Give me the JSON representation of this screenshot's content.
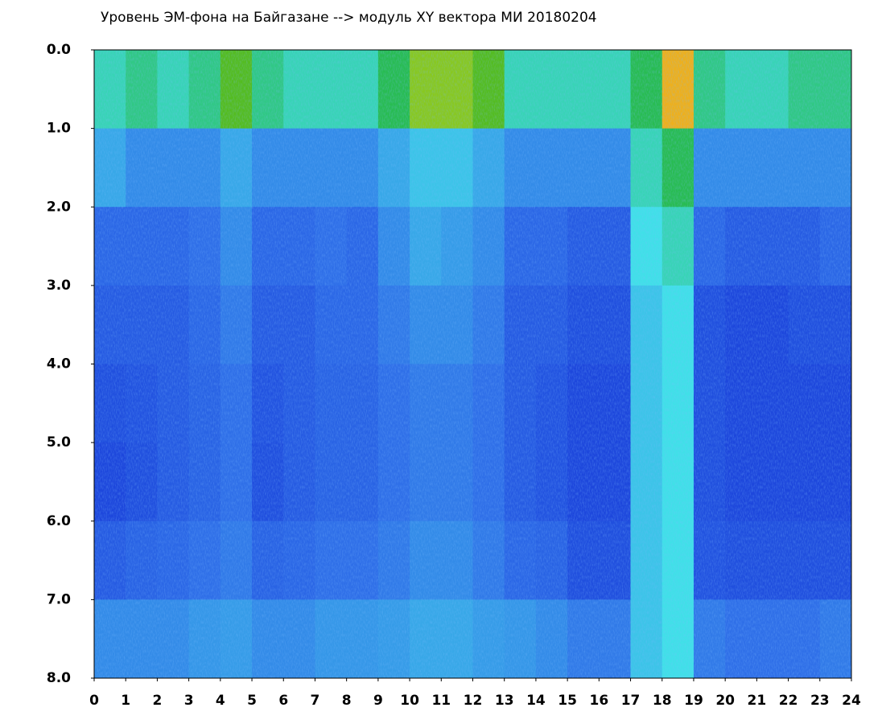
{
  "chart_data": {
    "type": "heatmap",
    "title": "Уровень ЭМ-фона на Байгазане  -->  модуль XY вектора МИ  20180204",
    "xlim": [
      0,
      24
    ],
    "xticks": [
      0,
      1,
      2,
      3,
      4,
      5,
      6,
      7,
      8,
      9,
      10,
      11,
      12,
      13,
      14,
      15,
      16,
      17,
      18,
      19,
      20,
      21,
      22,
      23,
      24
    ],
    "ylim": [
      0,
      8
    ],
    "yticks": [
      {
        "value": 0,
        "label": "0.0"
      },
      {
        "value": 1,
        "label": "1.0"
      },
      {
        "value": 2,
        "label": "2.0"
      },
      {
        "value": 3,
        "label": "3.0"
      },
      {
        "value": 4,
        "label": "4.0"
      },
      {
        "value": 5,
        "label": "5.0"
      },
      {
        "value": 6,
        "label": "6.0"
      },
      {
        "value": 7,
        "label": "7.0"
      },
      {
        "value": 8,
        "label": "8.0"
      }
    ],
    "y_inverted": true,
    "colormap": [
      "#0a1fd0",
      "#2f6fe8",
      "#40e0e8",
      "#20b020",
      "#f0e020",
      "#e82010"
    ],
    "z": [
      [
        0.45,
        0.5,
        0.45,
        0.5,
        0.65,
        0.5,
        0.45,
        0.45,
        0.45,
        0.55,
        0.7,
        0.7,
        0.65,
        0.45,
        0.45,
        0.45,
        0.45,
        0.55,
        0.85,
        0.5,
        0.45,
        0.45,
        0.5,
        0.5
      ],
      [
        0.3,
        0.25,
        0.25,
        0.25,
        0.3,
        0.25,
        0.25,
        0.25,
        0.25,
        0.3,
        0.35,
        0.35,
        0.3,
        0.25,
        0.25,
        0.25,
        0.25,
        0.45,
        0.55,
        0.25,
        0.25,
        0.25,
        0.25,
        0.25
      ],
      [
        0.18,
        0.18,
        0.18,
        0.2,
        0.25,
        0.18,
        0.18,
        0.2,
        0.18,
        0.25,
        0.3,
        0.28,
        0.25,
        0.18,
        0.18,
        0.15,
        0.15,
        0.4,
        0.45,
        0.18,
        0.15,
        0.15,
        0.15,
        0.18
      ],
      [
        0.15,
        0.15,
        0.15,
        0.18,
        0.22,
        0.15,
        0.15,
        0.18,
        0.18,
        0.22,
        0.25,
        0.25,
        0.22,
        0.15,
        0.15,
        0.12,
        0.12,
        0.35,
        0.4,
        0.12,
        0.1,
        0.1,
        0.12,
        0.12
      ],
      [
        0.12,
        0.13,
        0.15,
        0.17,
        0.2,
        0.13,
        0.15,
        0.17,
        0.17,
        0.2,
        0.22,
        0.22,
        0.2,
        0.15,
        0.13,
        0.1,
        0.1,
        0.35,
        0.4,
        0.12,
        0.1,
        0.1,
        0.1,
        0.1
      ],
      [
        0.1,
        0.12,
        0.15,
        0.17,
        0.2,
        0.12,
        0.15,
        0.17,
        0.17,
        0.2,
        0.22,
        0.22,
        0.2,
        0.15,
        0.13,
        0.1,
        0.1,
        0.35,
        0.4,
        0.12,
        0.1,
        0.1,
        0.1,
        0.1
      ],
      [
        0.15,
        0.17,
        0.18,
        0.2,
        0.22,
        0.17,
        0.18,
        0.2,
        0.2,
        0.22,
        0.25,
        0.25,
        0.22,
        0.18,
        0.17,
        0.12,
        0.12,
        0.35,
        0.4,
        0.13,
        0.12,
        0.12,
        0.12,
        0.12
      ],
      [
        0.25,
        0.25,
        0.25,
        0.27,
        0.28,
        0.25,
        0.25,
        0.27,
        0.27,
        0.28,
        0.3,
        0.3,
        0.28,
        0.27,
        0.25,
        0.22,
        0.22,
        0.35,
        0.4,
        0.22,
        0.2,
        0.2,
        0.2,
        0.22
      ]
    ]
  }
}
